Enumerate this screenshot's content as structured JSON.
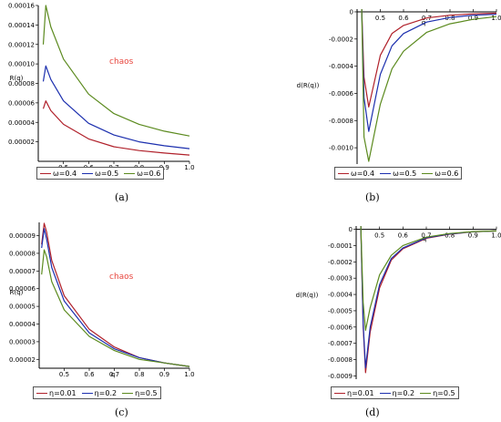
{
  "chart_data": [
    {
      "type": "line",
      "panel": "a",
      "caption": "(a)",
      "xlabel": "q",
      "ylabel": "R(q)",
      "annotation": "chaos",
      "xlim": [
        0.4,
        1.0
      ],
      "ylim": [
        0.0,
        0.00016
      ],
      "xticks": [
        "0.5",
        "0.6",
        "0.7",
        "0.8",
        "0.9",
        "1.0"
      ],
      "yticks": [
        "0.00002",
        "0.00004",
        "0.00006",
        "0.00008",
        "0.00010",
        "0.00012",
        "0.00014",
        "0.00016"
      ],
      "series": [
        {
          "name": "ω=0.4",
          "color": "#b0202a",
          "x": [
            0.42,
            0.43,
            0.45,
            0.5,
            0.6,
            0.7,
            0.8,
            0.9,
            1.0
          ],
          "values": [
            5.4e-05,
            6.2e-05,
            5.2e-05,
            3.8e-05,
            2.3e-05,
            1.5e-05,
            1.1e-05,
            8.5e-06,
            6.5e-06
          ]
        },
        {
          "name": "ω=0.5",
          "color": "#1c2fae",
          "x": [
            0.42,
            0.43,
            0.45,
            0.5,
            0.6,
            0.7,
            0.8,
            0.9,
            1.0
          ],
          "values": [
            8.2e-05,
            9.8e-05,
            8.4e-05,
            6.2e-05,
            3.9e-05,
            2.7e-05,
            2e-05,
            1.6e-05,
            1.3e-05
          ]
        },
        {
          "name": "ω=0.6",
          "color": "#5b8a1e",
          "x": [
            0.42,
            0.43,
            0.45,
            0.5,
            0.6,
            0.7,
            0.8,
            0.9,
            1.0
          ],
          "values": [
            0.00012,
            0.00016,
            0.000138,
            0.000105,
            6.9e-05,
            4.9e-05,
            3.8e-05,
            3.1e-05,
            2.6e-05
          ]
        }
      ]
    },
    {
      "type": "line",
      "panel": "b",
      "caption": "(b)",
      "xlabel": "q",
      "ylabel": "d(R(q))",
      "xlim": [
        0.4,
        1.0
      ],
      "ylim": [
        -0.00112,
        2e-05
      ],
      "xticks": [
        "0.5",
        "0.6",
        "0.7",
        "0.8",
        "0.9",
        "1.0"
      ],
      "yticks": [
        "0",
        "-0.0002",
        "-0.0004",
        "-0.0006",
        "-0.0008",
        "-0.0010"
      ],
      "series": [
        {
          "name": "ω=0.4",
          "color": "#b0202a",
          "x": [
            0.42,
            0.43,
            0.45,
            0.5,
            0.55,
            0.6,
            0.7,
            0.8,
            0.9,
            1.0
          ],
          "values": [
            2e-05,
            -0.00048,
            -0.0007,
            -0.00032,
            -0.00016,
            -0.0001,
            -4.5e-05,
            -2.5e-05,
            -1.5e-05,
            -1e-05
          ]
        },
        {
          "name": "ω=0.5",
          "color": "#1c2fae",
          "x": [
            0.42,
            0.43,
            0.45,
            0.5,
            0.55,
            0.6,
            0.7,
            0.8,
            0.9,
            1.0
          ],
          "values": [
            2e-05,
            -0.00063,
            -0.00088,
            -0.00046,
            -0.00025,
            -0.00016,
            -7.5e-05,
            -4.2e-05,
            -2.5e-05,
            -1.8e-05
          ]
        },
        {
          "name": "ω=0.6",
          "color": "#5b8a1e",
          "x": [
            0.42,
            0.43,
            0.45,
            0.5,
            0.55,
            0.6,
            0.7,
            0.8,
            0.9,
            1.0
          ],
          "values": [
            2e-05,
            -0.00092,
            -0.0011,
            -0.00068,
            -0.00042,
            -0.00029,
            -0.00015,
            -8.8e-05,
            -5.5e-05,
            -3.5e-05
          ]
        }
      ]
    },
    {
      "type": "line",
      "panel": "c",
      "caption": "(c)",
      "xlabel": "q",
      "ylabel": "R(q)",
      "annotation": "chaos",
      "xlim": [
        0.4,
        1.0
      ],
      "ylim": [
        1.5e-05,
        9.75e-05
      ],
      "xticks": [
        "0.5",
        "0.6",
        "0.7",
        "0.8",
        "0.9",
        "1.0"
      ],
      "yticks": [
        "0.00002",
        "0.00003",
        "0.00004",
        "0.00005",
        "0.00006",
        "0.00007",
        "0.00008",
        "0.00009"
      ],
      "series": [
        {
          "name": "η=0.01",
          "color": "#b0202a",
          "x": [
            0.41,
            0.42,
            0.43,
            0.45,
            0.5,
            0.6,
            0.7,
            0.8,
            0.9,
            1.0
          ],
          "values": [
            8.5e-05,
            9.7e-05,
            9.2e-05,
            7.6e-05,
            5.6e-05,
            3.7e-05,
            2.7e-05,
            2.1e-05,
            1.8e-05,
            1.6e-05
          ]
        },
        {
          "name": "η=0.2",
          "color": "#1c2fae",
          "x": [
            0.41,
            0.42,
            0.43,
            0.45,
            0.5,
            0.6,
            0.7,
            0.8,
            0.9,
            1.0
          ],
          "values": [
            8.3e-05,
            9.4e-05,
            8.8e-05,
            7.2e-05,
            5.3e-05,
            3.5e-05,
            2.6e-05,
            2.1e-05,
            1.8e-05,
            1.6e-05
          ]
        },
        {
          "name": "η=0.5",
          "color": "#5b8a1e",
          "x": [
            0.41,
            0.42,
            0.43,
            0.45,
            0.5,
            0.6,
            0.7,
            0.8,
            0.9,
            1.0
          ],
          "values": [
            6.8e-05,
            8.2e-05,
            7.8e-05,
            6.4e-05,
            4.8e-05,
            3.3e-05,
            2.5e-05,
            2e-05,
            1.8e-05,
            1.6e-05
          ]
        }
      ]
    },
    {
      "type": "line",
      "panel": "d",
      "caption": "(d)",
      "xlabel": "q",
      "ylabel": "d(R(q))",
      "xlim": [
        0.4,
        1.0
      ],
      "ylim": [
        -0.00092,
        2e-05
      ],
      "xticks": [
        "0.5",
        "0.6",
        "0.7",
        "0.8",
        "0.9",
        "1.0"
      ],
      "yticks": [
        "0",
        "-0.0001",
        "-0.0002",
        "-0.0003",
        "-0.0004",
        "-0.0005",
        "-0.0006",
        "-0.0007",
        "-0.0008",
        "-0.0009"
      ],
      "series": [
        {
          "name": "η=0.01",
          "color": "#b0202a",
          "x": [
            0.42,
            0.43,
            0.44,
            0.46,
            0.5,
            0.55,
            0.6,
            0.7,
            0.8,
            0.9,
            1.0
          ],
          "values": [
            2e-05,
            -0.0006,
            -0.00088,
            -0.00063,
            -0.00036,
            -0.00019,
            -0.00012,
            -5.5e-05,
            -3e-05,
            -1.5e-05,
            -1e-05
          ]
        },
        {
          "name": "η=0.2",
          "color": "#1c2fae",
          "x": [
            0.42,
            0.43,
            0.44,
            0.46,
            0.5,
            0.55,
            0.6,
            0.7,
            0.8,
            0.9,
            1.0
          ],
          "values": [
            2e-05,
            -0.00058,
            -0.00085,
            -0.0006,
            -0.00034,
            -0.00018,
            -0.000115,
            -5.2e-05,
            -2.8e-05,
            -1.5e-05,
            -1e-05
          ]
        },
        {
          "name": "η=0.5",
          "color": "#5b8a1e",
          "x": [
            0.42,
            0.43,
            0.44,
            0.46,
            0.5,
            0.55,
            0.6,
            0.7,
            0.8,
            0.9,
            1.0
          ],
          "values": [
            2e-05,
            -0.00045,
            -0.00062,
            -0.00048,
            -0.00028,
            -0.00016,
            -0.0001,
            -4.8e-05,
            -2.6e-05,
            -1.4e-05,
            -1e-05
          ]
        }
      ]
    }
  ]
}
